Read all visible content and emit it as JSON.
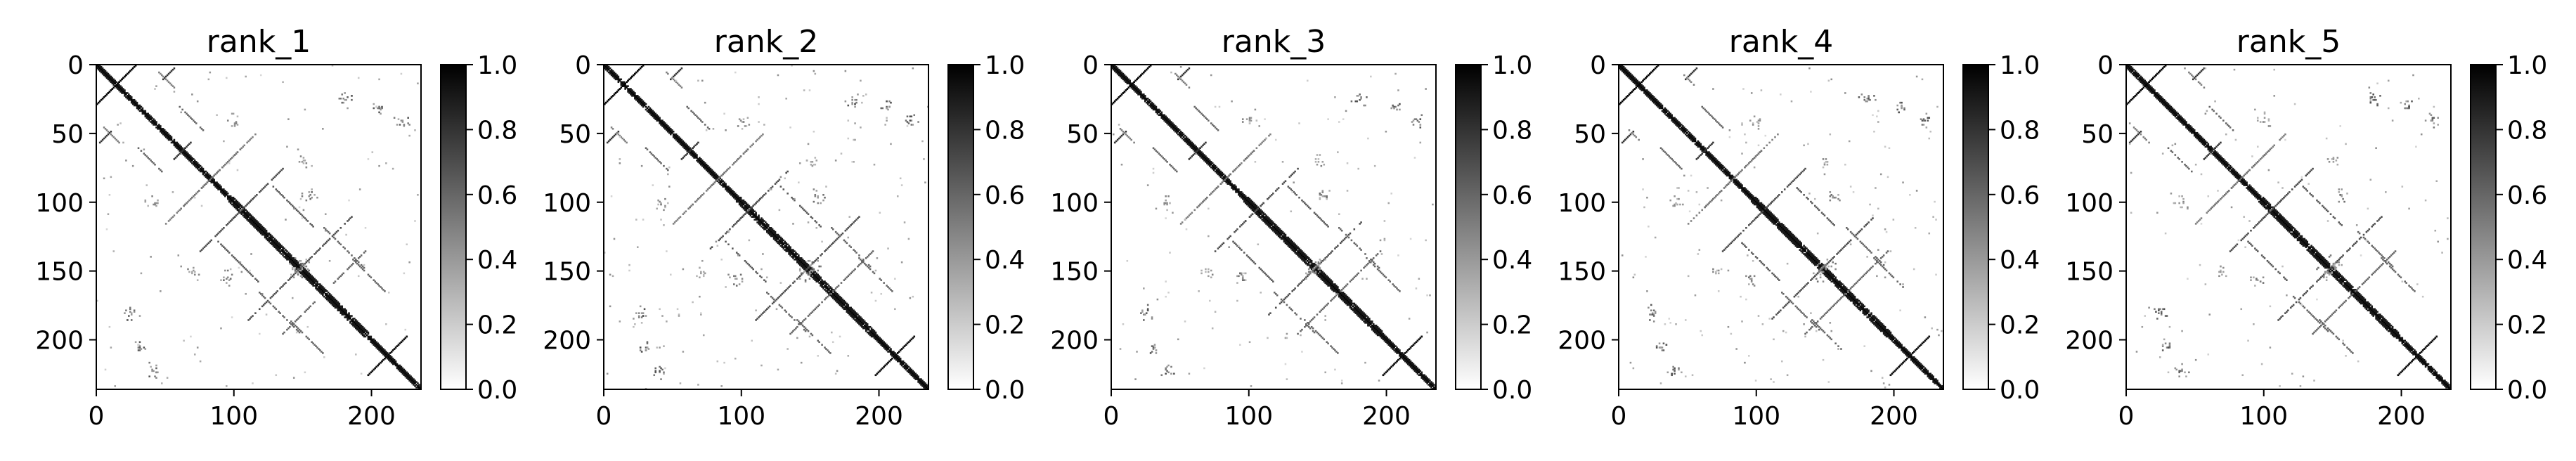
{
  "chart_data": [
    {
      "type": "heatmap",
      "title": "rank_1",
      "matrix_size": 236,
      "xlim": [
        0,
        236
      ],
      "ylim": [
        236,
        0
      ],
      "xticks": [
        0,
        100,
        200
      ],
      "yticks": [
        0,
        50,
        100,
        150,
        200
      ],
      "colormap": "gray_r",
      "colorbar_range": [
        0.0,
        1.0
      ],
      "colorbar_ticks": [
        "0.0",
        "0.2",
        "0.4",
        "0.6",
        "0.8",
        "1.0"
      ],
      "grid": false,
      "variant": 0
    },
    {
      "type": "heatmap",
      "title": "rank_2",
      "matrix_size": 236,
      "xlim": [
        0,
        236
      ],
      "ylim": [
        236,
        0
      ],
      "xticks": [
        0,
        100,
        200
      ],
      "yticks": [
        0,
        50,
        100,
        150,
        200
      ],
      "colormap": "gray_r",
      "colorbar_range": [
        0.0,
        1.0
      ],
      "colorbar_ticks": [
        "0.0",
        "0.2",
        "0.4",
        "0.6",
        "0.8",
        "1.0"
      ],
      "grid": false,
      "variant": 1
    },
    {
      "type": "heatmap",
      "title": "rank_3",
      "matrix_size": 236,
      "xlim": [
        0,
        236
      ],
      "ylim": [
        236,
        0
      ],
      "xticks": [
        0,
        100,
        200
      ],
      "yticks": [
        0,
        50,
        100,
        150,
        200
      ],
      "colormap": "gray_r",
      "colorbar_range": [
        0.0,
        1.0
      ],
      "colorbar_ticks": [
        "0.0",
        "0.2",
        "0.4",
        "0.6",
        "0.8",
        "1.0"
      ],
      "grid": false,
      "variant": 2
    },
    {
      "type": "heatmap",
      "title": "rank_4",
      "matrix_size": 236,
      "xlim": [
        0,
        236
      ],
      "ylim": [
        236,
        0
      ],
      "xticks": [
        0,
        100,
        200
      ],
      "yticks": [
        0,
        50,
        100,
        150,
        200
      ],
      "colormap": "gray_r",
      "colorbar_range": [
        0.0,
        1.0
      ],
      "colorbar_ticks": [
        "0.0",
        "0.2",
        "0.4",
        "0.6",
        "0.8",
        "1.0"
      ],
      "grid": false,
      "variant": 3
    },
    {
      "type": "heatmap",
      "title": "rank_5",
      "matrix_size": 236,
      "xlim": [
        0,
        236
      ],
      "ylim": [
        236,
        0
      ],
      "xticks": [
        0,
        100,
        200
      ],
      "yticks": [
        0,
        50,
        100,
        150,
        200
      ],
      "colormap": "gray_r",
      "colorbar_range": [
        0.0,
        1.0
      ],
      "colorbar_ticks": [
        "0.0",
        "0.2",
        "0.4",
        "0.6",
        "0.8",
        "1.0"
      ],
      "grid": false,
      "variant": 4
    }
  ]
}
